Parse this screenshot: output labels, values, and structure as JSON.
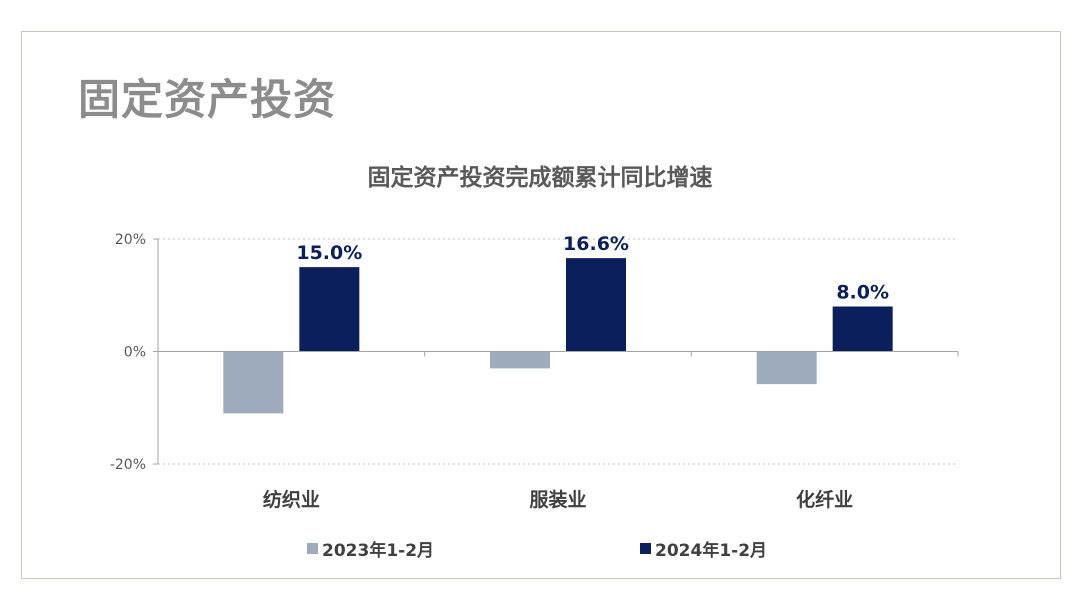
{
  "page": {
    "title": "固定资产投资"
  },
  "colors": {
    "series_2023": "#9eabbd",
    "series_2024": "#0b1f5c",
    "axis": "#a6a6a6",
    "grid": "#bfbfbf",
    "text": "#404040"
  },
  "chart_data": {
    "type": "bar",
    "title": "固定资产投资完成额累计同比增速",
    "xlabel": "",
    "ylabel": "",
    "categories": [
      "纺织业",
      "服装业",
      "化纤业"
    ],
    "yticks": [
      "20%",
      "0%",
      "-20%"
    ],
    "ylim": [
      -20,
      20
    ],
    "grid": true,
    "legend": "bottom",
    "series": [
      {
        "name": "2023年1-2月",
        "values": [
          -11.0,
          -3.0,
          -5.8
        ],
        "data_labels": [
          "",
          "",
          ""
        ]
      },
      {
        "name": "2024年1-2月",
        "values": [
          15.0,
          16.6,
          8.0
        ],
        "data_labels": [
          "15.0%",
          "16.6%",
          "8.0%"
        ]
      }
    ]
  }
}
